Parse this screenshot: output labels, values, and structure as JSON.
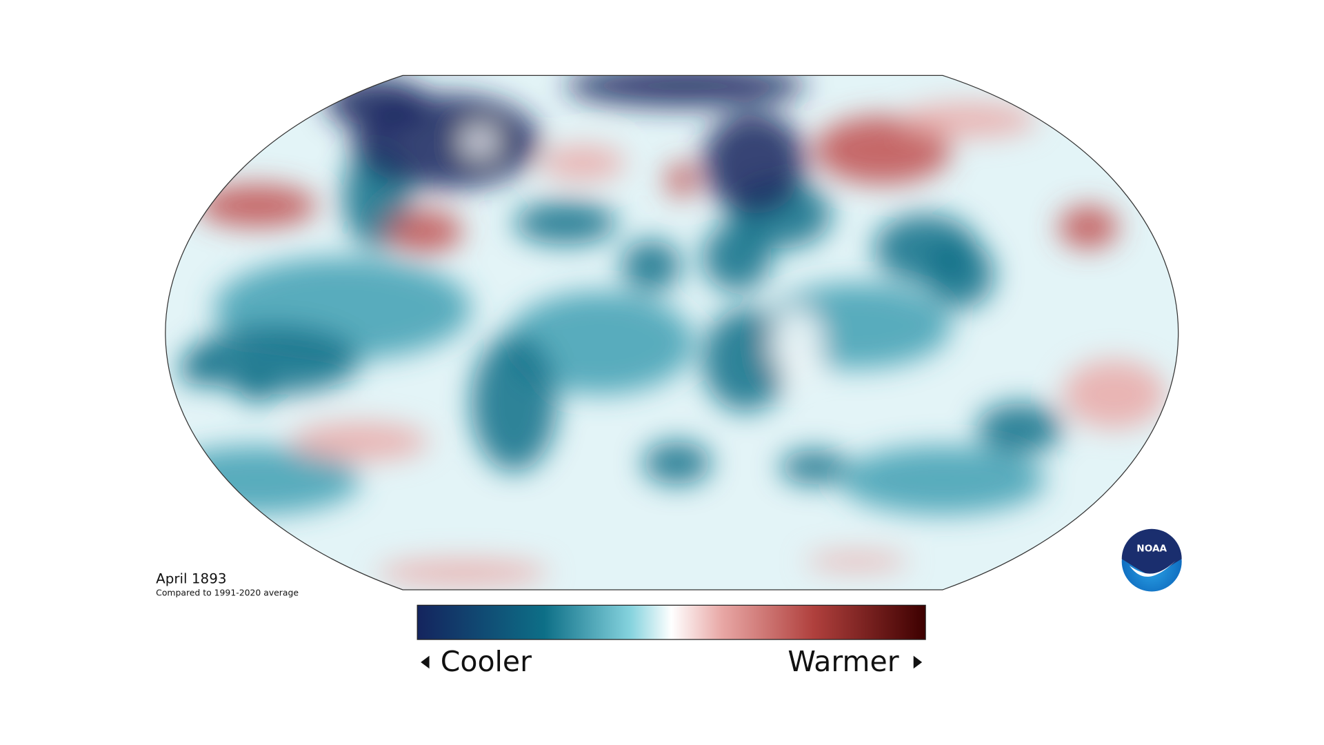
{
  "map": {
    "title": "April 1893",
    "subtitle": "Compared to 1991-2020 average"
  },
  "legend": {
    "low_label": "Cooler",
    "high_label": "Warmer"
  },
  "logo": {
    "text": "NOAA"
  }
}
